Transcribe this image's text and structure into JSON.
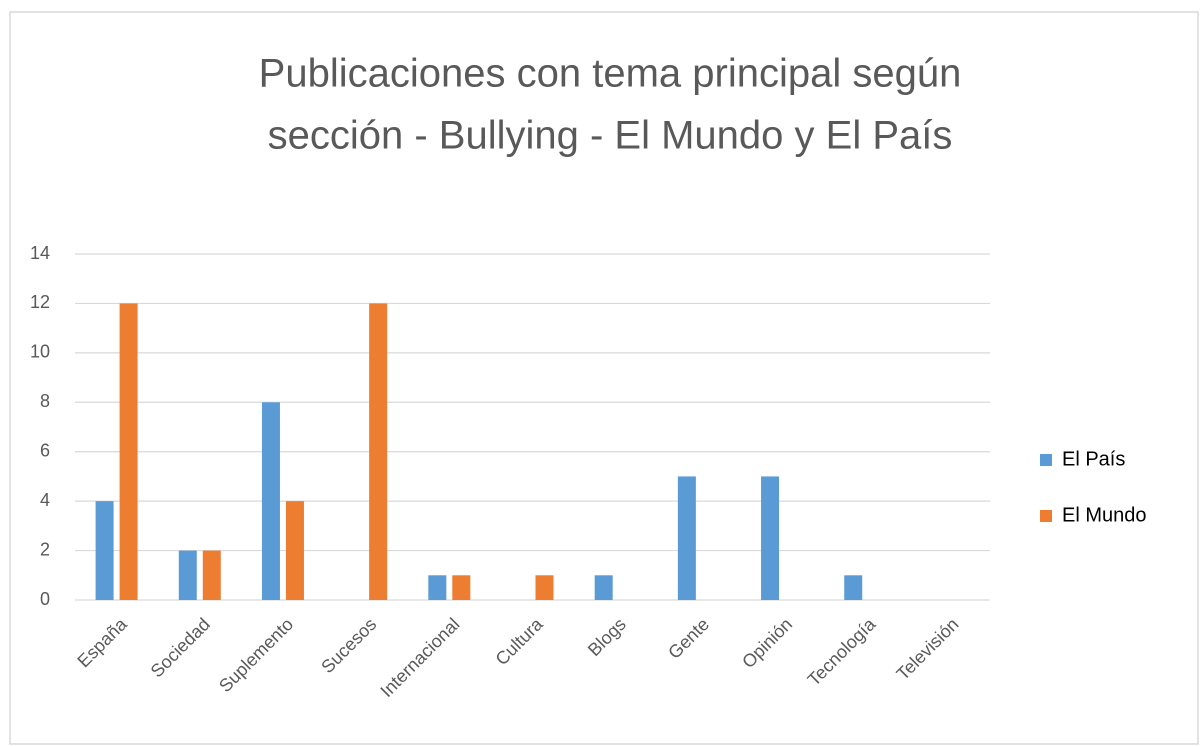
{
  "chart_data": {
    "type": "bar",
    "title": [
      "Publicaciones con tema principal según",
      "sección - Bullying - El Mundo y El País"
    ],
    "categories": [
      "España",
      "Sociedad",
      "Suplemento",
      "Sucesos",
      "Internacional",
      "Cultura",
      "Blogs",
      "Gente",
      "Opinión",
      "Tecnología",
      "Televisión"
    ],
    "series": [
      {
        "name": "El País",
        "color": "#5b9bd5",
        "values": [
          4,
          2,
          8,
          0,
          1,
          0,
          1,
          5,
          5,
          1,
          0
        ]
      },
      {
        "name": "El Mundo",
        "color": "#ed7d31",
        "values": [
          12,
          2,
          4,
          12,
          1,
          1,
          0,
          0,
          0,
          0,
          0
        ]
      }
    ],
    "ylim": [
      0,
      14
    ],
    "yticks": [
      0,
      2,
      4,
      6,
      8,
      10,
      12,
      14
    ],
    "grid": true,
    "legend": "right"
  }
}
